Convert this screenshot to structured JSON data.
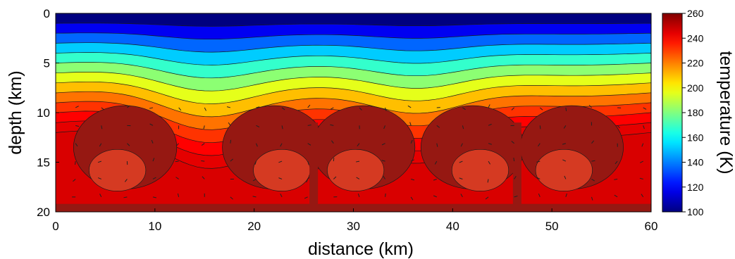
{
  "chart_data": {
    "type": "heatmap",
    "title": "",
    "xlabel": "distance (km)",
    "ylabel": "depth (km)",
    "xlim": [
      0,
      60
    ],
    "ylim": [
      0,
      20
    ],
    "y_inverted": true,
    "x_ticks": [
      "0",
      "10",
      "20",
      "30",
      "40",
      "50",
      "60"
    ],
    "y_ticks": [
      "0",
      "5",
      "10",
      "15",
      "20"
    ],
    "colorbar": {
      "label": "temperature (K)",
      "range": [
        100,
        260
      ],
      "ticks": [
        "100",
        "120",
        "140",
        "160",
        "180",
        "200",
        "220",
        "240",
        "260"
      ],
      "colormap": "jet"
    },
    "plumes_x_km": [
      15,
      36.5
    ],
    "upwellings_x_km": [
      26,
      46.5
    ],
    "profile": {
      "depth_km": [
        0,
        1,
        2,
        3,
        4,
        5,
        6,
        7,
        8,
        9,
        10,
        11,
        12
      ],
      "temperature_K": [
        100,
        118,
        136,
        152,
        168,
        182,
        196,
        210,
        222,
        232,
        240,
        244,
        246
      ]
    },
    "contour_interval_K": 10,
    "overlay": "velocity arrows",
    "colors": {
      "deep_core": "#961812",
      "warm_cell": "#d53a22",
      "cold_top": "#00008f"
    }
  }
}
